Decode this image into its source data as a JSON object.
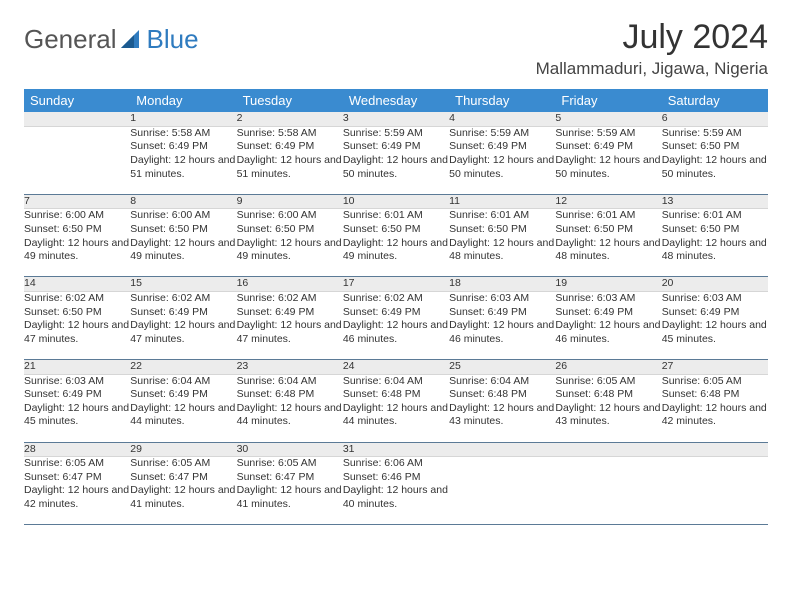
{
  "brand": {
    "part1": "General",
    "part2": "Blue"
  },
  "title": "July 2024",
  "location": "Mallammaduri, Jigawa, Nigeria",
  "colors": {
    "header_bg": "#3a8bd0",
    "header_text": "#ffffff",
    "daynum_bg": "#ececec",
    "row_border": "#5b7a96",
    "body_text": "#333333",
    "page_bg": "#ffffff"
  },
  "typography": {
    "title_fontsize": 34,
    "location_fontsize": 17,
    "dayheader_fontsize": 13,
    "cell_fontsize": 10.5
  },
  "day_headers": [
    "Sunday",
    "Monday",
    "Tuesday",
    "Wednesday",
    "Thursday",
    "Friday",
    "Saturday"
  ],
  "weeks": [
    [
      {
        "num": "",
        "sunrise": "",
        "sunset": "",
        "daylight": ""
      },
      {
        "num": "1",
        "sunrise": "Sunrise: 5:58 AM",
        "sunset": "Sunset: 6:49 PM",
        "daylight": "Daylight: 12 hours and 51 minutes."
      },
      {
        "num": "2",
        "sunrise": "Sunrise: 5:58 AM",
        "sunset": "Sunset: 6:49 PM",
        "daylight": "Daylight: 12 hours and 51 minutes."
      },
      {
        "num": "3",
        "sunrise": "Sunrise: 5:59 AM",
        "sunset": "Sunset: 6:49 PM",
        "daylight": "Daylight: 12 hours and 50 minutes."
      },
      {
        "num": "4",
        "sunrise": "Sunrise: 5:59 AM",
        "sunset": "Sunset: 6:49 PM",
        "daylight": "Daylight: 12 hours and 50 minutes."
      },
      {
        "num": "5",
        "sunrise": "Sunrise: 5:59 AM",
        "sunset": "Sunset: 6:49 PM",
        "daylight": "Daylight: 12 hours and 50 minutes."
      },
      {
        "num": "6",
        "sunrise": "Sunrise: 5:59 AM",
        "sunset": "Sunset: 6:50 PM",
        "daylight": "Daylight: 12 hours and 50 minutes."
      }
    ],
    [
      {
        "num": "7",
        "sunrise": "Sunrise: 6:00 AM",
        "sunset": "Sunset: 6:50 PM",
        "daylight": "Daylight: 12 hours and 49 minutes."
      },
      {
        "num": "8",
        "sunrise": "Sunrise: 6:00 AM",
        "sunset": "Sunset: 6:50 PM",
        "daylight": "Daylight: 12 hours and 49 minutes."
      },
      {
        "num": "9",
        "sunrise": "Sunrise: 6:00 AM",
        "sunset": "Sunset: 6:50 PM",
        "daylight": "Daylight: 12 hours and 49 minutes."
      },
      {
        "num": "10",
        "sunrise": "Sunrise: 6:01 AM",
        "sunset": "Sunset: 6:50 PM",
        "daylight": "Daylight: 12 hours and 49 minutes."
      },
      {
        "num": "11",
        "sunrise": "Sunrise: 6:01 AM",
        "sunset": "Sunset: 6:50 PM",
        "daylight": "Daylight: 12 hours and 48 minutes."
      },
      {
        "num": "12",
        "sunrise": "Sunrise: 6:01 AM",
        "sunset": "Sunset: 6:50 PM",
        "daylight": "Daylight: 12 hours and 48 minutes."
      },
      {
        "num": "13",
        "sunrise": "Sunrise: 6:01 AM",
        "sunset": "Sunset: 6:50 PM",
        "daylight": "Daylight: 12 hours and 48 minutes."
      }
    ],
    [
      {
        "num": "14",
        "sunrise": "Sunrise: 6:02 AM",
        "sunset": "Sunset: 6:50 PM",
        "daylight": "Daylight: 12 hours and 47 minutes."
      },
      {
        "num": "15",
        "sunrise": "Sunrise: 6:02 AM",
        "sunset": "Sunset: 6:49 PM",
        "daylight": "Daylight: 12 hours and 47 minutes."
      },
      {
        "num": "16",
        "sunrise": "Sunrise: 6:02 AM",
        "sunset": "Sunset: 6:49 PM",
        "daylight": "Daylight: 12 hours and 47 minutes."
      },
      {
        "num": "17",
        "sunrise": "Sunrise: 6:02 AM",
        "sunset": "Sunset: 6:49 PM",
        "daylight": "Daylight: 12 hours and 46 minutes."
      },
      {
        "num": "18",
        "sunrise": "Sunrise: 6:03 AM",
        "sunset": "Sunset: 6:49 PM",
        "daylight": "Daylight: 12 hours and 46 minutes."
      },
      {
        "num": "19",
        "sunrise": "Sunrise: 6:03 AM",
        "sunset": "Sunset: 6:49 PM",
        "daylight": "Daylight: 12 hours and 46 minutes."
      },
      {
        "num": "20",
        "sunrise": "Sunrise: 6:03 AM",
        "sunset": "Sunset: 6:49 PM",
        "daylight": "Daylight: 12 hours and 45 minutes."
      }
    ],
    [
      {
        "num": "21",
        "sunrise": "Sunrise: 6:03 AM",
        "sunset": "Sunset: 6:49 PM",
        "daylight": "Daylight: 12 hours and 45 minutes."
      },
      {
        "num": "22",
        "sunrise": "Sunrise: 6:04 AM",
        "sunset": "Sunset: 6:49 PM",
        "daylight": "Daylight: 12 hours and 44 minutes."
      },
      {
        "num": "23",
        "sunrise": "Sunrise: 6:04 AM",
        "sunset": "Sunset: 6:48 PM",
        "daylight": "Daylight: 12 hours and 44 minutes."
      },
      {
        "num": "24",
        "sunrise": "Sunrise: 6:04 AM",
        "sunset": "Sunset: 6:48 PM",
        "daylight": "Daylight: 12 hours and 44 minutes."
      },
      {
        "num": "25",
        "sunrise": "Sunrise: 6:04 AM",
        "sunset": "Sunset: 6:48 PM",
        "daylight": "Daylight: 12 hours and 43 minutes."
      },
      {
        "num": "26",
        "sunrise": "Sunrise: 6:05 AM",
        "sunset": "Sunset: 6:48 PM",
        "daylight": "Daylight: 12 hours and 43 minutes."
      },
      {
        "num": "27",
        "sunrise": "Sunrise: 6:05 AM",
        "sunset": "Sunset: 6:48 PM",
        "daylight": "Daylight: 12 hours and 42 minutes."
      }
    ],
    [
      {
        "num": "28",
        "sunrise": "Sunrise: 6:05 AM",
        "sunset": "Sunset: 6:47 PM",
        "daylight": "Daylight: 12 hours and 42 minutes."
      },
      {
        "num": "29",
        "sunrise": "Sunrise: 6:05 AM",
        "sunset": "Sunset: 6:47 PM",
        "daylight": "Daylight: 12 hours and 41 minutes."
      },
      {
        "num": "30",
        "sunrise": "Sunrise: 6:05 AM",
        "sunset": "Sunset: 6:47 PM",
        "daylight": "Daylight: 12 hours and 41 minutes."
      },
      {
        "num": "31",
        "sunrise": "Sunrise: 6:06 AM",
        "sunset": "Sunset: 6:46 PM",
        "daylight": "Daylight: 12 hours and 40 minutes."
      },
      {
        "num": "",
        "sunrise": "",
        "sunset": "",
        "daylight": ""
      },
      {
        "num": "",
        "sunrise": "",
        "sunset": "",
        "daylight": ""
      },
      {
        "num": "",
        "sunrise": "",
        "sunset": "",
        "daylight": ""
      }
    ]
  ]
}
